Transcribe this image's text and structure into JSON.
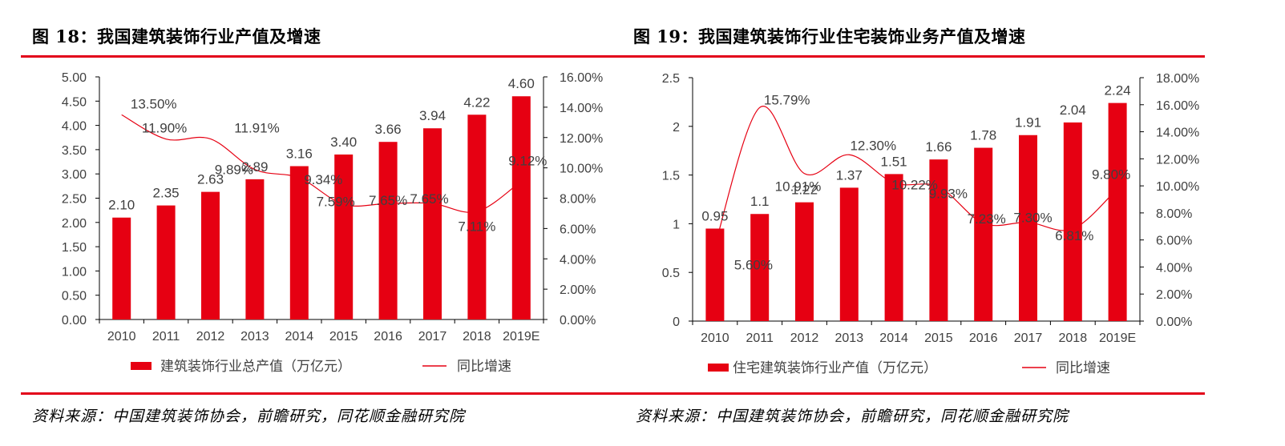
{
  "colors": {
    "accent": "#e2001a",
    "bar": "#e60012",
    "line": "#e60012",
    "text": "#404040",
    "axis": "#000000"
  },
  "figures": [
    {
      "title": "图  18：我国建筑装饰行业产值及增速",
      "source": "资料来源：中国建筑装饰协会，前瞻研究，同花顺金融研究院"
    },
    {
      "title": "图  19：我国建筑装饰行业住宅装饰业务产值及增速",
      "source": "资料来源：中国建筑装饰协会，前瞻研究，同花顺金融研究院"
    }
  ],
  "chart_data": [
    {
      "type": "bar",
      "title": "我国建筑装饰行业产值及增速",
      "categories": [
        "2010",
        "2011",
        "2012",
        "2013",
        "2014",
        "2015",
        "2016",
        "2017",
        "2018",
        "2019E"
      ],
      "series": [
        {
          "name": "建筑装饰行业总产值（万亿元）",
          "type": "bar",
          "axis": "left",
          "values": [
            2.1,
            2.35,
            2.63,
            2.89,
            3.16,
            3.4,
            3.66,
            3.94,
            4.22,
            4.6
          ],
          "labels": [
            "2.10",
            "2.35",
            "2.63",
            "2.89",
            "3.16",
            "3.40",
            "3.66",
            "3.94",
            "4.22",
            "4.60"
          ]
        },
        {
          "name": "同比增速",
          "type": "line",
          "axis": "right",
          "smooth": true,
          "values": [
            13.5,
            11.9,
            11.91,
            9.89,
            9.34,
            7.59,
            7.65,
            7.65,
            7.11,
            9.12
          ],
          "labels": [
            "13.50%",
            "11.90%",
            "11.91%",
            "9.89%",
            "9.34%",
            "7.59%",
            "7.65%",
            "7.65%",
            "7.11%",
            "9.12%"
          ]
        }
      ],
      "y_left": {
        "min": 0,
        "max": 5,
        "step": 0.5,
        "ticks": [
          "0.00",
          "0.50",
          "1.00",
          "1.50",
          "2.00",
          "2.50",
          "3.00",
          "3.50",
          "4.00",
          "4.50",
          "5.00"
        ]
      },
      "y_right": {
        "min": 0,
        "max": 16,
        "step": 2,
        "ticks": [
          "0.00%",
          "2.00%",
          "4.00%",
          "6.00%",
          "8.00%",
          "10.00%",
          "12.00%",
          "14.00%",
          "16.00%"
        ]
      },
      "grid": false,
      "legend": {
        "position": "bottom",
        "items": [
          "建筑装饰行业总产值（万亿元）",
          "同比增速"
        ]
      }
    },
    {
      "type": "bar",
      "title": "我国建筑装饰行业住宅装饰业务产值及增速",
      "categories": [
        "2010",
        "2011",
        "2012",
        "2013",
        "2014",
        "2015",
        "2016",
        "2017",
        "2018",
        "2019E"
      ],
      "series": [
        {
          "name": "住宅建筑装饰行业产值（万亿元）",
          "type": "bar",
          "axis": "left",
          "values": [
            0.95,
            1.1,
            1.22,
            1.37,
            1.51,
            1.66,
            1.78,
            1.91,
            2.04,
            2.24
          ],
          "labels": [
            "0.95",
            "1.1",
            "1.22",
            "1.37",
            "1.51",
            "1.66",
            "1.78",
            "1.91",
            "2.04",
            "2.24"
          ]
        },
        {
          "name": "同比增速",
          "type": "line",
          "axis": "right",
          "smooth": true,
          "values": [
            5.6,
            15.79,
            10.91,
            12.3,
            10.22,
            9.93,
            7.23,
            7.3,
            6.81,
            9.8
          ],
          "labels": [
            "5.60%",
            "15.79%",
            "10.91%",
            "12.30%",
            "10.22%",
            "9.93%",
            "7.23%",
            "7.30%",
            "6.81%",
            "9.80%"
          ]
        }
      ],
      "y_left": {
        "min": 0,
        "max": 2.5,
        "step": 0.5,
        "ticks": [
          "0",
          "0.5",
          "1",
          "1.5",
          "2",
          "2.5"
        ]
      },
      "y_right": {
        "min": 0,
        "max": 18,
        "step": 2,
        "ticks": [
          "0.00%",
          "2.00%",
          "4.00%",
          "6.00%",
          "8.00%",
          "10.00%",
          "12.00%",
          "14.00%",
          "16.00%",
          "18.00%"
        ]
      },
      "grid": false,
      "legend": {
        "position": "bottom",
        "items": [
          "住宅建筑装饰行业产值（万亿元）",
          "同比增速"
        ]
      }
    }
  ]
}
